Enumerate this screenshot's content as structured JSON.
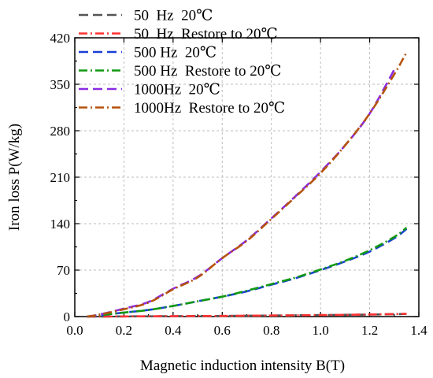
{
  "chart_data": {
    "type": "line",
    "xlabel": "Magnetic induction intensity B(T)",
    "ylabel": "Iron loss P(W/kg)",
    "xlim": [
      0.0,
      1.4
    ],
    "ylim": [
      0,
      420
    ],
    "xticks": [
      "0.0",
      "0.2",
      "0.4",
      "0.6",
      "0.8",
      "1.0",
      "1.2",
      "1.4"
    ],
    "yticks": [
      "0",
      "70",
      "140",
      "210",
      "280",
      "350",
      "420"
    ],
    "grid": true,
    "legend_position": "top-left",
    "series": [
      {
        "name": "50  Hz  20℃",
        "color": "#555555",
        "dash": "dash",
        "x": [
          0.05,
          0.2,
          0.4,
          0.6,
          0.8,
          1.0,
          1.2,
          1.35
        ],
        "y": [
          0,
          0.2,
          0.6,
          1.0,
          1.6,
          2.2,
          3.0,
          4.0
        ]
      },
      {
        "name": "50  Hz  Restore to 20℃",
        "color": "#ff3333",
        "dash": "dashdot",
        "x": [
          0.05,
          0.2,
          0.4,
          0.6,
          0.8,
          1.0,
          1.2,
          1.35
        ],
        "y": [
          0,
          0.2,
          0.6,
          1.0,
          1.6,
          2.2,
          3.2,
          4.2
        ]
      },
      {
        "name": "500 Hz  20℃",
        "color": "#1a3fd4",
        "dash": "dash",
        "x": [
          0.05,
          0.1,
          0.2,
          0.3,
          0.4,
          0.5,
          0.6,
          0.7,
          0.8,
          0.9,
          1.0,
          1.1,
          1.2,
          1.3,
          1.35
        ],
        "y": [
          0,
          2,
          6,
          10,
          16,
          23,
          30,
          38,
          48,
          58,
          70,
          83,
          98,
          118,
          132
        ]
      },
      {
        "name": "500 Hz  Restore to 20℃",
        "color": "#119911",
        "dash": "dashdot",
        "x": [
          0.05,
          0.1,
          0.2,
          0.3,
          0.4,
          0.5,
          0.6,
          0.7,
          0.8,
          0.9,
          1.0,
          1.1,
          1.2,
          1.3,
          1.35
        ],
        "y": [
          0,
          2,
          6,
          10,
          16,
          23,
          30,
          39,
          49,
          59,
          71,
          84,
          100,
          120,
          134
        ]
      },
      {
        "name": "1000Hz  20℃",
        "color": "#8a2be2",
        "dash": "dash",
        "x": [
          0.05,
          0.1,
          0.2,
          0.3,
          0.4,
          0.5,
          0.6,
          0.7,
          0.8,
          0.9,
          1.0,
          1.1,
          1.2,
          1.3
        ],
        "y": [
          0,
          3,
          12,
          22,
          42,
          60,
          88,
          115,
          148,
          182,
          218,
          258,
          306,
          372
        ]
      },
      {
        "name": "1000Hz  Restore to 20℃",
        "color": "#b5530d",
        "dash": "dashdot",
        "x": [
          0.05,
          0.1,
          0.2,
          0.3,
          0.4,
          0.5,
          0.6,
          0.7,
          0.8,
          0.9,
          1.0,
          1.1,
          1.2,
          1.3,
          1.35
        ],
        "y": [
          0,
          3,
          11,
          21,
          41,
          59,
          88,
          114,
          147,
          181,
          216,
          258,
          306,
          365,
          398
        ]
      }
    ]
  }
}
